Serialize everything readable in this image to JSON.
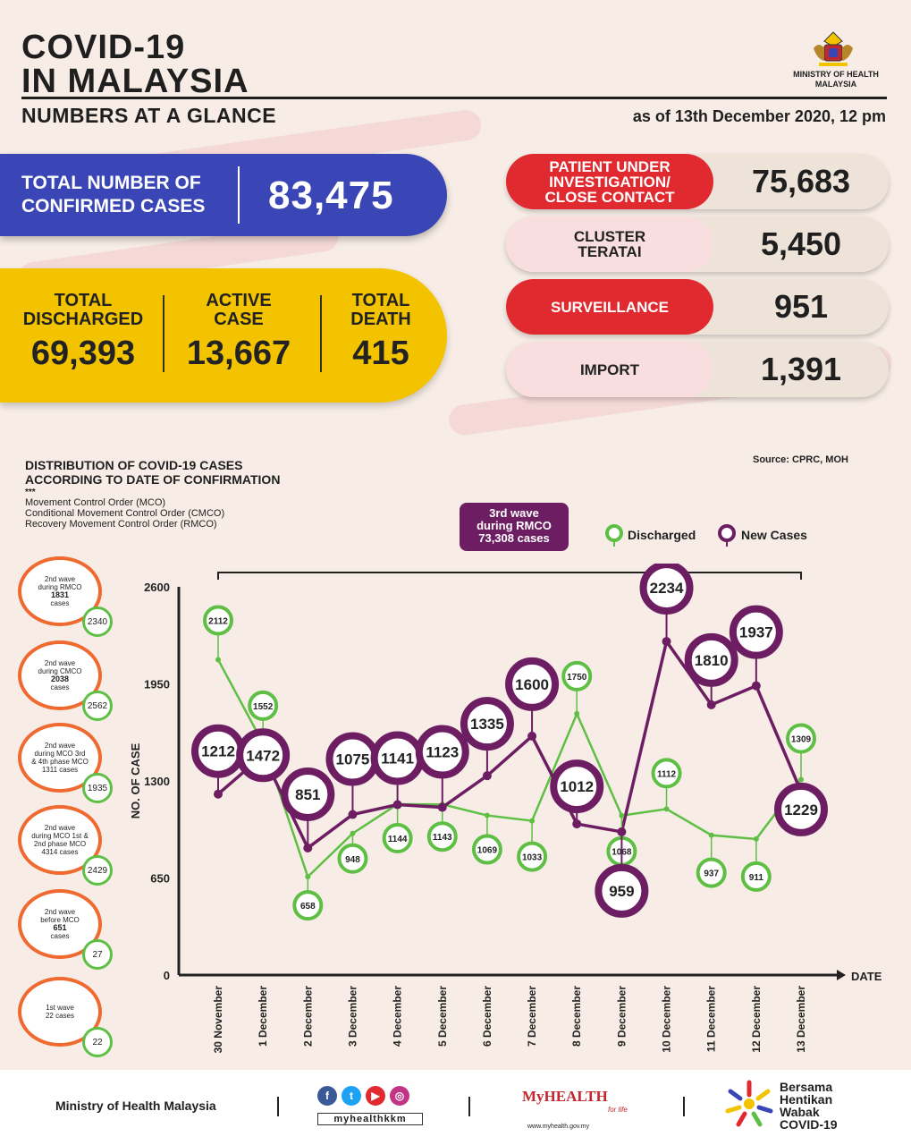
{
  "header": {
    "title_line1": "COVID-19",
    "title_line2": "IN MALAYSIA",
    "subtitle": "NUMBERS AT A GLANCE",
    "as_of": "as of 13th December 2020, 12 pm",
    "ministry_line1": "MINISTRY OF HEALTH",
    "ministry_line2": "MALAYSIA"
  },
  "confirmed": {
    "label_line1": "TOTAL NUMBER OF",
    "label_line2": "CONFIRMED CASES",
    "value": "83,475"
  },
  "summary": {
    "discharged_label1": "TOTAL",
    "discharged_label2": "DISCHARGED",
    "discharged_value": "69,393",
    "active_label1": "ACTIVE",
    "active_label2": "CASE",
    "active_value": "13,667",
    "death_label1": "TOTAL",
    "death_label2": "DEATH",
    "death_value": "415"
  },
  "categories": [
    {
      "label1": "PATIENT UNDER",
      "label2": "INVESTIGATION/",
      "label3": "CLOSE CONTACT",
      "value": "75,683",
      "style": "red"
    },
    {
      "label1": "CLUSTER",
      "label2": "TERATAI",
      "label3": "",
      "value": "5,450",
      "style": "pink"
    },
    {
      "label1": "SURVEILLANCE",
      "label2": "",
      "label3": "",
      "value": "951",
      "style": "red"
    },
    {
      "label1": "IMPORT",
      "label2": "",
      "label3": "",
      "value": "1,391",
      "style": "pink"
    }
  ],
  "chart_section": {
    "title_line1": "DISTRIBUTION OF COVID-19 CASES",
    "title_line2": "ACCORDING TO DATE OF CONFIRMATION",
    "stars": "***",
    "abbr1": "Movement Control Order (MCO)",
    "abbr2": "Conditional Movement Control Order (CMCO)",
    "abbr3": "Recovery Movement Control Order (RMCO)",
    "source": "Source: CPRC, MOH",
    "wave3_line1": "3rd wave",
    "wave3_line2": "during RMCO",
    "wave3_line3": "73,308 cases",
    "legend_discharged": "Discharged",
    "legend_new": "New Cases"
  },
  "waves": [
    {
      "l1": "2nd wave",
      "l2": "during RMCO",
      "l3": "1831",
      "l4": "cases",
      "badge": "2340"
    },
    {
      "l1": "2nd wave",
      "l2": "during CMCO",
      "l3": "2038",
      "l4": "cases",
      "badge": "2562"
    },
    {
      "l1": "2nd wave",
      "l2": "during MCO 3rd",
      "l3": "& 4th phase MCO",
      "l4": "1311 cases",
      "badge": "1935"
    },
    {
      "l1": "2nd wave",
      "l2": "during MCO 1st &",
      "l3": "2nd phase MCO",
      "l4": "4314 cases",
      "badge": "2429"
    },
    {
      "l1": "2nd wave",
      "l2": "before MCO",
      "l3": "651",
      "l4": "cases",
      "badge": "27"
    },
    {
      "l1": "1st wave",
      "l2": "22 cases",
      "l3": "",
      "l4": "",
      "badge": "22"
    }
  ],
  "chart_data": {
    "type": "line",
    "title": "DISTRIBUTION OF COVID-19 CASES ACCORDING TO DATE OF CONFIRMATION",
    "xlabel": "DATE",
    "ylabel": "NO. OF CASE",
    "ylim": [
      0,
      2600
    ],
    "yticks": [
      0,
      650,
      1300,
      1950,
      2600
    ],
    "categories": [
      "30 November",
      "1 December",
      "2 December",
      "3 December",
      "4 December",
      "5 December",
      "6 December",
      "7 December",
      "8 December",
      "9 December",
      "10 December",
      "11 December",
      "12 December",
      "13 December"
    ],
    "series": [
      {
        "name": "Discharged",
        "color": "#5fbf45",
        "values": [
          2112,
          1552,
          658,
          948,
          1144,
          1143,
          1069,
          1033,
          1750,
          1068,
          1112,
          937,
          911,
          1309
        ]
      },
      {
        "name": "New Cases",
        "color": "#6d1e63",
        "values": [
          1212,
          1472,
          851,
          1075,
          1141,
          1123,
          1335,
          1600,
          1012,
          959,
          2234,
          1810,
          1937,
          1229
        ]
      }
    ]
  },
  "footer": {
    "ministry": "Ministry of Health Malaysia",
    "handle": "myhealthkkm",
    "myhealth": "MyHEALTH",
    "myhealth_sub": "for life",
    "myhealth_url": "www.myhealth.gov.my",
    "bersama1": "Bersama",
    "bersama2": "Hentikan",
    "bersama3": "Wabak",
    "bersama4": "COVID-19"
  }
}
